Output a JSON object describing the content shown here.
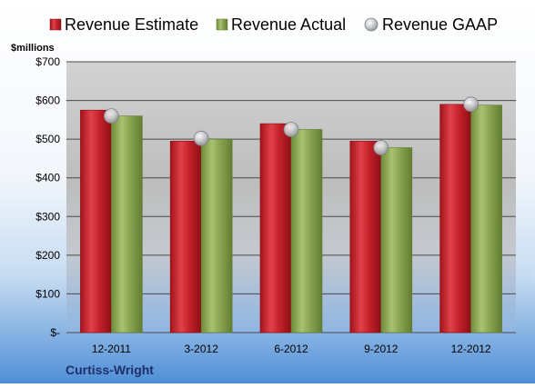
{
  "chart_data": {
    "type": "bar",
    "title": "",
    "ylabel": "$millions",
    "xlabel": "",
    "company": "Curtiss-Wright",
    "categories": [
      "12-2011",
      "3-2012",
      "6-2012",
      "9-2012",
      "12-2012"
    ],
    "series": [
      {
        "name": "Revenue Estimate",
        "kind": "bar",
        "color": "#c0202a",
        "values": [
          575,
          495,
          540,
          495,
          590
        ]
      },
      {
        "name": "Revenue Actual",
        "kind": "bar",
        "color": "#8aa552",
        "values": [
          560,
          500,
          525,
          478,
          588
        ]
      },
      {
        "name": "Revenue GAAP",
        "kind": "marker",
        "color": "#c8cace",
        "values": [
          560,
          502,
          525,
          478,
          590
        ]
      }
    ],
    "ylim": [
      0,
      700
    ],
    "yticks": [
      0,
      100,
      200,
      300,
      400,
      500,
      600,
      700
    ],
    "ytick_labels": [
      "$-",
      "$100",
      "$200",
      "$300",
      "$400",
      "$500",
      "$600",
      "$700"
    ],
    "grid": true,
    "legend_position": "top"
  }
}
